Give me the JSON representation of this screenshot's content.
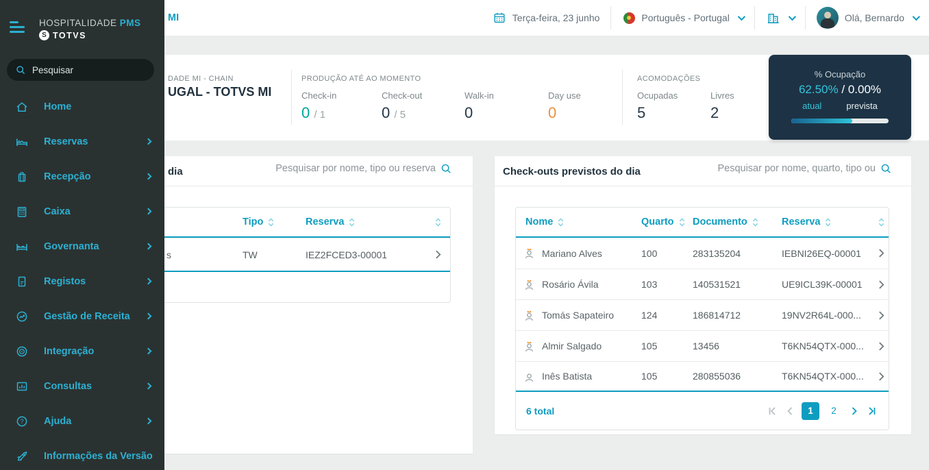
{
  "colors": {
    "accent_cyan": "#0e9dc0",
    "sidebar_cyan": "#2cb0d2",
    "sidebar_bg": "#2a3231",
    "occupancy_card_bg": "#1d3345",
    "teal_value": "#00a59b",
    "orange_value": "#e8913d"
  },
  "sidebar": {
    "logo": {
      "brand": "HOSPITALIDADE",
      "product": "PMS",
      "company": "TOTVS"
    },
    "search_placeholder": "Pesquisar",
    "items": [
      {
        "label": "Home",
        "icon": "home-icon",
        "has_submenu": false
      },
      {
        "label": "Reservas",
        "icon": "bed-icon",
        "has_submenu": true
      },
      {
        "label": "Recepção",
        "icon": "suitcase-icon",
        "has_submenu": true
      },
      {
        "label": "Caixa",
        "icon": "calculator-icon",
        "has_submenu": true
      },
      {
        "label": "Governanta",
        "icon": "double-bed-icon",
        "has_submenu": true
      },
      {
        "label": "Registos",
        "icon": "document-icon",
        "has_submenu": true
      },
      {
        "label": "Gestão de Receita",
        "icon": "revenue-chart-icon",
        "has_submenu": true
      },
      {
        "label": "Integração",
        "icon": "disc-icon",
        "has_submenu": true
      },
      {
        "label": "Consultas",
        "icon": "bar-chart-window-icon",
        "has_submenu": true
      },
      {
        "label": "Ajuda",
        "icon": "question-circle-icon",
        "has_submenu": true
      },
      {
        "label": "Informações da Versão",
        "icon": "rocket-icon",
        "has_submenu": false
      }
    ]
  },
  "topbar": {
    "title_fragment": "MI",
    "date": "Terça-feira, 23 junho",
    "language": "Português - Portugal",
    "greeting": "Olá, Bernardo"
  },
  "stats": {
    "property_line1_fragment": "DADE MI - CHAIN",
    "property_line2_fragment": "UGAL - TOTVS MI",
    "production": {
      "title": "PRODUÇÃO ATÉ AO MOMENTO",
      "checkin": {
        "label": "Check-in",
        "value": "0",
        "suffix": "/ 1"
      },
      "checkout": {
        "label": "Check-out",
        "value": "0",
        "suffix": "/ 5"
      },
      "walkin": {
        "label": "Walk-in",
        "value": "0"
      },
      "dayuse": {
        "label": "Day use",
        "value": "0"
      }
    },
    "accommodations": {
      "title": "ACOMODAÇÕES",
      "occupied": {
        "label": "Ocupadas",
        "value": "5"
      },
      "free": {
        "label": "Livres",
        "value": "2"
      }
    },
    "occupancy": {
      "title": "% Ocupação",
      "current": "62.50%",
      "separator": "/",
      "forecast": "0.00%",
      "current_label": "atual",
      "forecast_label": "prevista",
      "percent_fill": 62.5
    }
  },
  "checkins_panel": {
    "title_fragment": "dia",
    "search_placeholder": "Pesquisar por nome, tipo ou reserva",
    "columns": {
      "tipo": "Tipo",
      "reserva": "Reserva"
    },
    "row": {
      "name_fragment": "s",
      "tipo": "TW",
      "reserva": "IEZ2FCED3-00001"
    }
  },
  "checkouts_panel": {
    "title": "Check-outs previstos do dia",
    "search_placeholder": "Pesquisar por nome, quarto, tipo ou",
    "columns": {
      "nome": "Nome",
      "quarto": "Quarto",
      "documento": "Documento",
      "reserva": "Reserva"
    },
    "rows": [
      {
        "name": "Mariano Alves",
        "quarto": "100",
        "documento": "283135204",
        "reserva": "IEBNI26EQ-00001",
        "vip": true
      },
      {
        "name": "Rosário Ávila",
        "quarto": "103",
        "documento": "140531521",
        "reserva": "UE9ICL39K-00001",
        "vip": true
      },
      {
        "name": "Tomás Sapateiro",
        "quarto": "124",
        "documento": "186814712",
        "reserva": "19NV2R64L-000...",
        "vip": true
      },
      {
        "name": "Almir Salgado",
        "quarto": "105",
        "documento": "13456",
        "reserva": "T6KN54QTX-000...",
        "vip": true
      },
      {
        "name": "Inês Batista",
        "quarto": "105",
        "documento": "280855036",
        "reserva": "T6KN54QTX-000...",
        "vip": false
      }
    ],
    "pagination": {
      "total": "6 total",
      "pages": [
        "1",
        "2"
      ],
      "active": "1"
    }
  }
}
